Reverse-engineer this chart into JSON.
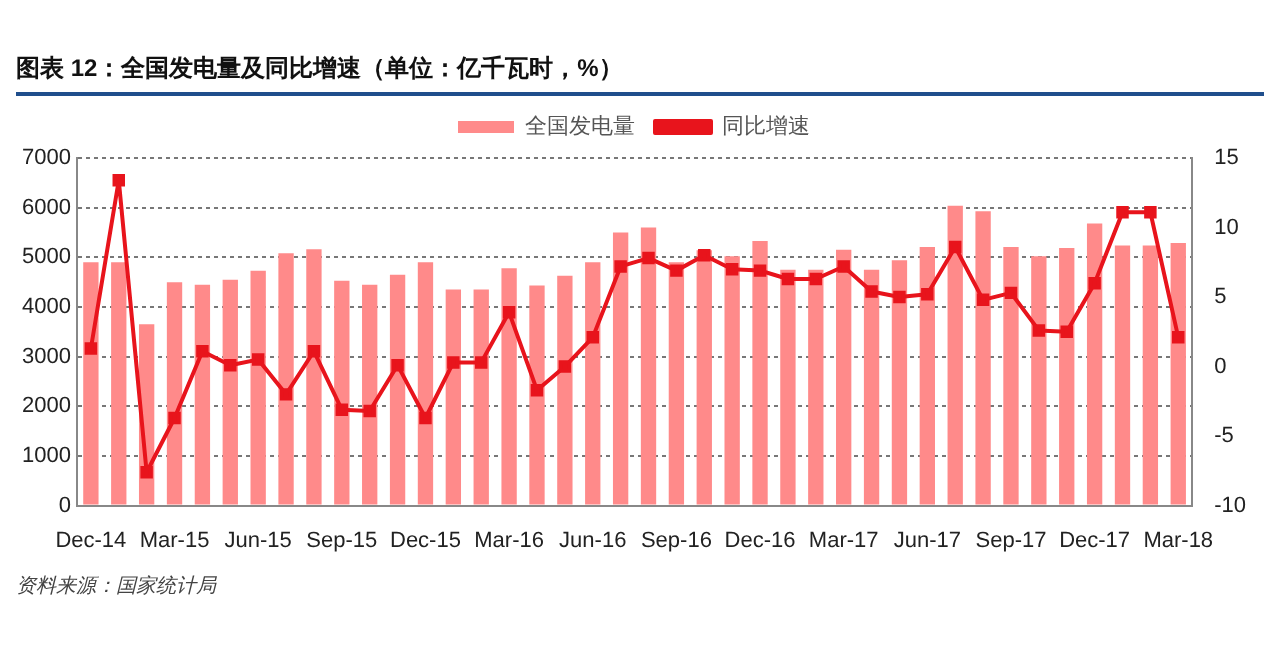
{
  "chart_data": {
    "type": "bar",
    "title": "图表 12：全国发电量及同比增速（单位：亿千瓦时，%）",
    "annotations": [
      "资料来源：国家统计局"
    ],
    "categories": [
      "Dec-14",
      null,
      null,
      "Mar-15",
      null,
      null,
      "Jun-15",
      null,
      null,
      "Sep-15",
      null,
      null,
      "Dec-15",
      null,
      null,
      "Mar-16",
      null,
      null,
      "Jun-16",
      null,
      null,
      "Sep-16",
      null,
      null,
      "Dec-16",
      null,
      null,
      "Mar-17",
      null,
      null,
      "Jun-17",
      null,
      null,
      "Sep-17",
      null,
      null,
      "Dec-17",
      null,
      null,
      "Mar-18"
    ],
    "series": [
      {
        "name": "全国发电量",
        "color": "#ff8a8a",
        "values": [
          4900,
          4900,
          3650,
          4500,
          4450,
          4550,
          4730,
          5080,
          5160,
          4530,
          4450,
          4650,
          4900,
          4350,
          4350,
          4780,
          4430,
          4630,
          4900,
          5500,
          5600,
          4900,
          5140,
          5020,
          5330,
          4750,
          4750,
          5150,
          4750,
          4940,
          5210,
          6040,
          5930,
          5210,
          5020,
          5190,
          5680,
          5240,
          5240,
          5290
        ]
      },
      {
        "name": "同比增速",
        "type": "line",
        "axis": "y2",
        "color": "#e8141c",
        "marker": "square",
        "values": [
          1.3,
          13.4,
          -7.6,
          -3.7,
          1.1,
          0.1,
          0.5,
          -2.0,
          1.1,
          -3.1,
          -3.2,
          0.1,
          -3.7,
          0.3,
          0.3,
          3.9,
          -1.7,
          0.0,
          2.1,
          7.2,
          7.8,
          6.9,
          8.0,
          7.0,
          6.9,
          6.3,
          6.3,
          7.2,
          5.4,
          5.0,
          5.2,
          8.6,
          4.8,
          5.3,
          2.6,
          2.5,
          6.0,
          11.1,
          11.1,
          2.1
        ]
      }
    ],
    "ylim": [
      0,
      7000
    ],
    "yticks": [
      0,
      1000,
      2000,
      3000,
      4000,
      5000,
      6000,
      7000
    ],
    "y2lim": [
      -10,
      15
    ],
    "y2ticks": [
      -10,
      -5,
      0,
      5,
      10,
      15
    ],
    "grid": "y",
    "legend": "top"
  }
}
